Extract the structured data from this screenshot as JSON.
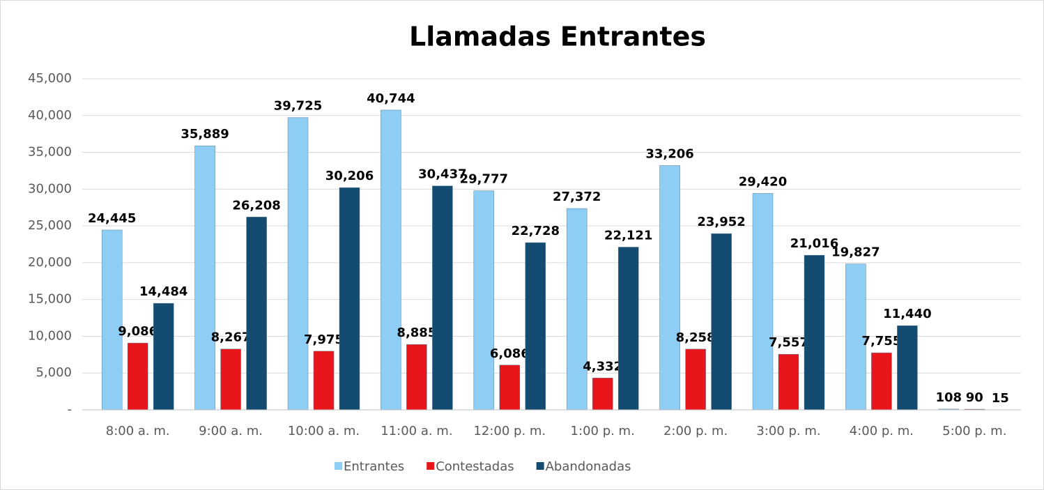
{
  "chart_data": {
    "type": "bar",
    "title": "Llamadas Entrantes",
    "categories": [
      "8:00 a. m.",
      "9:00 a. m.",
      "10:00 a. m.",
      "11:00 a. m.",
      "12:00 p. m.",
      "1:00 p. m.",
      "2:00 p. m.",
      "3:00 p. m.",
      "4:00 p. m.",
      "5:00 p. m."
    ],
    "series": [
      {
        "name": "Entrantes",
        "color": "#8ecdf4",
        "values": [
          24445,
          35889,
          39725,
          40744,
          29777,
          27372,
          33206,
          29420,
          19827,
          108
        ],
        "value_labels": [
          "24,445",
          "35,889",
          "39,725",
          "40,744",
          "29,777",
          "27,372",
          "33,206",
          "29,420",
          "19,827",
          "108"
        ]
      },
      {
        "name": "Contestadas",
        "color": "#e8151b",
        "values": [
          9086,
          8267,
          7975,
          8885,
          6086,
          4332,
          8258,
          7557,
          7755,
          90
        ],
        "value_labels": [
          "9,086",
          "8,267",
          "7,975",
          "8,885",
          "6,086",
          "4,332",
          "8,258",
          "7,557",
          "7,755",
          "90"
        ]
      },
      {
        "name": "Abandonadas",
        "color": "#134b71",
        "values": [
          14484,
          26208,
          30206,
          30437,
          22728,
          22121,
          23952,
          21016,
          11440,
          15
        ],
        "value_labels": [
          "14,484",
          "26,208",
          "30,206",
          "30,437",
          "22,728",
          "22,121",
          "23,952",
          "21,016",
          "11,440",
          "15"
        ]
      }
    ],
    "ylim": [
      0,
      45000
    ],
    "yticks": [
      {
        "value": 0,
        "label": "-"
      },
      {
        "value": 5000,
        "label": "5,000"
      },
      {
        "value": 10000,
        "label": "10,000"
      },
      {
        "value": 15000,
        "label": "15,000"
      },
      {
        "value": 20000,
        "label": "20,000"
      },
      {
        "value": 25000,
        "label": "25,000"
      },
      {
        "value": 30000,
        "label": "30,000"
      },
      {
        "value": 35000,
        "label": "35,000"
      },
      {
        "value": 40000,
        "label": "40,000"
      },
      {
        "value": 45000,
        "label": "45,000"
      }
    ],
    "grid": true,
    "legend": "bottom"
  }
}
